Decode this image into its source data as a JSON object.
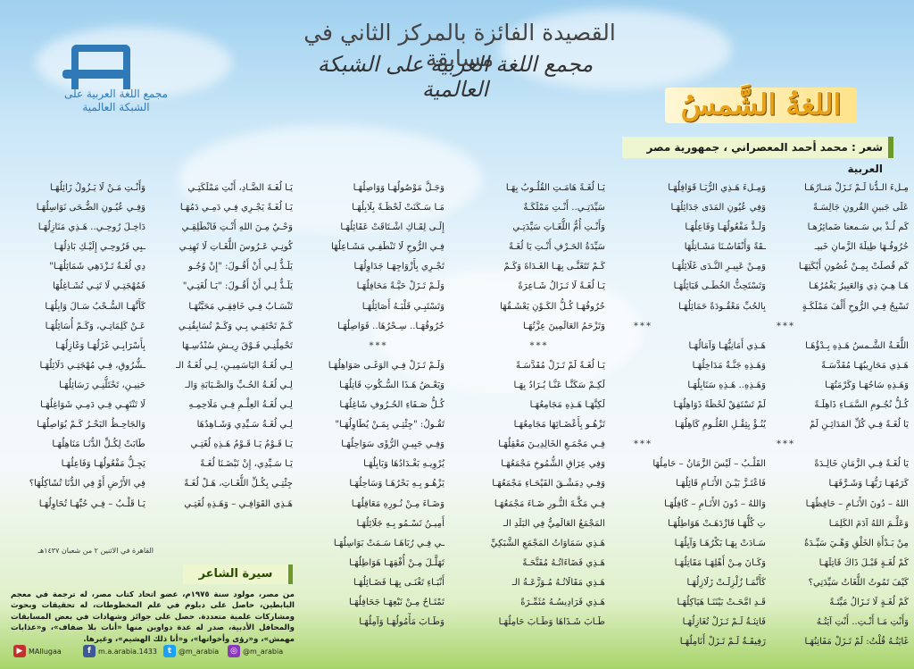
{
  "header": {
    "title": "القصيدة الفائزة بالمركز الثاني في مسابقة",
    "subtitle": "مجمع اللغة العربية على الشبكة العالمية"
  },
  "logo": {
    "text": "مجمع اللغة العربية على الشبكة العالمية"
  },
  "poem": {
    "title": "اللغةُ الشَّمسُ",
    "byline": "شعر : محمد أحمد المعصراني ، جمهورية مصر العربية",
    "separator": "***",
    "columns": [
      [
        "مِـلءَ الـدُّنا لَـمْ تَـزَلْ مَنـارُهَـا",
        "عَلَى جَبينِ القُرونِ جَالِسَـةً",
        "كَم لُـذْ بي سَـمعنا ضَمائِرُهـا",
        "حُرُوفُـهَا طِيلَةَ الزَّمانِ خَبيـ",
        "كَم قُصلَتْ بِمِـنْ غُصُونِ أَيْكَتِهَـا",
        "هَـا هِـيَ ذِي وَالعَبِيرُ يَغْمُرُهَـا",
        "تَسْبِحُ فِـي الرُّوحِ أَلْفَ مَمْلَكَـةٍ",
        "***",
        "اللُّغَـةُ الشَّـمسُ هَـذِهِ بِـدْؤُهَـا",
        "هَـذِي مَحَارِيبُهَـا مُقَدَّسَـةً",
        "وَهَـذِهِ سَاحُهَـا وَكَرْمَتُهَـا",
        "كُـلُّ نُجُـومِ السَّمَـاءِ ذَاهِلَـةً",
        "يَا لُغَـةً فِـي كُلِّ المَدَائِـنِ لَمْ",
        "***",
        "يَا لُغَـةً فِـي الزَّمَانِ خَالِـدَةً",
        "كَرَمُهَـا رَبُّهَـا وَشَـرَّفَهَـا",
        "اللهُ – دُونَ الأَنَـامِ – حَافِظُهَـا",
        "وَعَلَّـمَ اللهُ آدَمَ الكَلِمَـا",
        "مِنْ بَـدْأَةِ الخَلْقِ وَهْـيَ سَيِّـدَةٌ",
        "كَمْ لُغَـةٍ قَبْـلَ ذَاكَ قَاتِلَهَـا",
        "كَيْفَ تَمُوتُ اللُّغَاتُ سَيِّدَتِي؟",
        "كَمْ لُغَـةٍ لَا تَـزَالُ مَيِّتَـةً",
        "وَأَنْتِ مَـا أَنْـتِ.. أَنْتِ آيَتُـهُ",
        "غَايَتُـهُ قُلْتُ: لَمْ تَـزَلْ مَفَاتِنُهَـا"
      ],
      [
        "وَمِـلءَ هَـذِي الرُّبَـا قَوَافِلُهَـا",
        "وَفِي عُيُونِ المَدَى جَدَائِلُهَـا",
        "وَلَـذَّ مَفْعُولُهَـا وَفَاعِلُهَـا",
        "ـقَةً وَأَنْفَاسُـنَا مَشَـاتِلُهَا",
        "وَمِـنْ عَبِيـرِ النَّـدَى غَلَائِلُهَـا",
        "وَتَسْتَحِثُّ الخُطَـى قَبَائِلُهَـا",
        "بِالحُبِّ مَعْقُـودَةً حَمَائِلُهَـا",
        "***",
        "هَـذِي أَمَانِيُّهَـا وَآمَالُهَـا",
        "وَهَـذِهِ جَنَّـةٌ مَدَاخِلُهَـا",
        "وَهَـذِهِ.. هَـذِهِ سَنَابِلُهَـا",
        "لَمْ تَسْتَفِقْ لَحْظَةً ذَوَاهِلُهَـا",
        "يُنُـؤْ بِثِقْـلِ العُلُـومِ كَاهِلُهَـا",
        "***",
        "القَلْـبُ – لَيْسَ الزَّمَانُ – حَامِلُهَا",
        "فَاعْتَـزَّ بَيْـنَ الأَنَـامِ قَائِلُهَـا",
        "وَاللهُ – دُونَ الأَنَـامِ – كَافِلُهَـا",
        "تِ كُلُّهَـا فَازْدَهَـتْ هَوَاطِلُهَـا",
        "سَـادَتْ بِهَـا بَكْرُهَـا وَآيِلُهَـا",
        "وَكَـانَ مِـنْ أَهْلِهَـا مَقَاتِلُهَـا",
        "كَأَنَّمَـا زُلْزِلَـتْ زَلَازِلُهَـا",
        "قَـدِ امَّحَـتْ بَيْنَنَـا هَيَاكِلُهَـا",
        "فَاتِنَـةٌ لَـمْ تَـزَلْ تُغَازِلُهَـا",
        "رَفِيقَـةٌ لَـمْ تَـزَلْ أَنَامِلُهَـا"
      ],
      [
        "يَـا لُغَـةً هَامَـتِ القُلُـوبُ بِهَـا",
        "سَيِّدَتِـي.. أَنْـتِ مَمْلَكَـةٌ",
        "وَأَنْـتِ أُمُّ اللُّغَـاتِ سَيِّدَتِـي",
        "سَيِّدَةُ الحَـرْفِ أَنْـتِ يَا لُغَـةً",
        "كَـمْ تَتَغَنَّـى بِهَـا الغَـدَاةَ وَكَـمْ",
        "يَـا لُغَـةً لَا تَـزَالُ شَـاعِرَةً",
        "حُرُوفُهَـا كُـلُّ الكَـوْنِ يَعْشَـقُهَا",
        "وَتَزْحَمُ العَالَمِينَ عِزَّتُهَـا",
        "***",
        "يَـا لُغَـةً لَمْ تَـزَلْ مُقَدَّسَـةً",
        "لَكِـمْ سَكَنَّـا عَنَّـا يُـرَادُ بِهَـا",
        "لَكِنَّهَـا هَـذِهِ مَجَامِعُهَـا",
        "تَزْهُـو بِأَعْضَـائِهَا مَجَامِعُهَـا",
        "فِـي مَجْمَـعِ الخَالِدِيـنَ مَعْقِلُهَـا",
        "وَفِي عِرَاقِ الشُّمُوخِ مَجْمَعُهَـا",
        "وَفِـي دِمَشْـقَ الفَيْحَـاءِ مَجْمَعُهَـا",
        "فِـي مَكَّـةَ النُّـورِ ضَـاءَ مَجْمَعُهَـا",
        "المَجْمَعُ العَالَمِيُّ فِي البَلَدِ الـ",
        "هَـذِي سَمَاوَاتُ المَجْمَعِ الشَّبَكِيِّ",
        "هَـذِي فَضَاءَاتُـهُ مُفَتَّحَـةً",
        "هَـذِي مَقَالَاتُـهُ مُـوَزَّعَـةُ الـ",
        "هَـذِي فَرَادِيسُـهُ مُثَمِّـرَةً",
        "طَـابَ شَـذَاهَا وَطَـابَ حَامِلُهَـا"
      ],
      [
        "وَجَـلَّ مَوْصُولُهَـا وَوَاصِلُهَـا",
        "مَـا سَـكَنَتْ لَحْظَـةً بِلَابِلُهَـا",
        "إِلَـى لِقَـاكِ اشْـتَاقَتْ عَقَائِلُهَـا",
        "فِـي الرُّوحِ لَا تَنْطَفِـي مَشَـاعِلُهَا",
        "تَجْـرِي بِأَزْوَاجِهَـا جَدَاوِلُهَـا",
        "وَلَـمْ تَـزَلْ حَيَّـةً مَحَافِلُهَـا",
        "وَتَسْتَبِـي قَلْبَـهُ أَصَائِلُهَـا",
        "حُرُوفُهَـا.. سِـحْرُهَا.. فَوَاصِلُهَـا",
        "***",
        "وَلَـمْ تَـزَلْ فِـي الوَغَـى صَوَاهِلُهَـا",
        "وَيَعْـضُ هَـذَا السُّـكُوتِ قَاتِلُهَـا",
        "كُـلُّ صَـفَاءِ الحُـرُوفِ شَاغِلُهَـا",
        "تَقُـولُ: \"جِئْتِـي بِمَـنْ يُطَاوِلُهَـا\"",
        "وَفِـي جَبِيـنِ الرُّؤَى سَوَاحِلُهَـا",
        "يُرْوِيـهِ بَغْـدَادُهَا وَبَابِلُهَـا",
        "يَزْهُـو بِـهِ بَحْرُهَـا وَسَاحِلُهَـا",
        "وَضَـاءَ مِـنْ نُـورِهِ مَعَاقِلُهَـا",
        "أَمِيـنُ تَسْـمُو بِـهِ جَلَائِلُهَـا",
        "ـي فِـي رُبَاهَـا سَـمَتْ بَوَاسِلُهَـا",
        "تَهَلَّـلَ مِـنْ أُفْقِهَـا هَوَاطِلُهَـا",
        "أَنْبَـاءِ تَغْنَـى بِهَـا فَضَـائِلُهَـا",
        "تَمْتَـاحُ مِـنْ نَبْعِهَـا جَحَافِلُهَـا",
        "وَطَـابَ مَأْمُولُهَـا وَآمِلُهَـا"
      ],
      [
        "يَـا لُغَـةَ الضَّـادِ، أَنْتِ مَمْلَكَتِـي",
        "يَـا لُغَـةً يَجْـرِي فِـي دَمِـي دَمُهَـا",
        "وَحْـيٌ مِـنَ اللهِ أَنْـتِ فَانْطَلِقِـي",
        "كُونِـي عَـرُوسَ اللُّغَـاتِ لَا تَهِنِـي",
        "يَلَـذُّ لِـي أَنْ أَقُـولَ: \"إِنْ وُجُـو",
        "يَلَـذُّ لِـي أَنْ أَقُـولَ: \"يَـا لُغَتِـي\"",
        "تَنْسَـابُ فِـي خَافِقِـي مَحَبَّتُهَـا",
        "كَـمْ تَحْتَفِـي بِـي وَكَـمْ تُسَابِقُنِـي",
        "تَحْمِلُنِـي فَـوْقَ رِيـشِ سُنْدُسِـهَا",
        "لِـي لُغَـةُ اليَاسَمِيـنِ، لِـي لُغَـةُ الـ",
        "لِـي لُغَـةُ الحُـبِّ وَالصَّـبَابَةِ وَالـ",
        "لِـي لُغَـةُ العِلْـمِ فِـي مَلَاحِمِـهِ",
        "لِـي لُغَـةُ سَـيِّدِي وَشَـاهِدُهَا",
        "يَـا قَـوْمُ يَـا قَـوْمُ هَـذِهِ لُغَتِـي",
        "يَـا سَـيِّدِي، إِنْ نَبْضَـنَا لُغَـةً",
        "جِئْتِـي بِكُـلِّ اللُّغَـاتِ، هَـلْ لُغَـةً",
        "هَـذِي القَوَافِـي – وَهَـذِهِ لُغَتِـي"
      ],
      [
        "وَأَنْـتِ مَـنْ لَا يَـزُولُ زَائِلُهَـا",
        "وَفِـي عُيُـونِ الضُّـحَى نَوَاسِلُهَـا",
        "دَاخِـلَ رُوحِـي.. هَـذِي مَنَازِلُهَـا",
        "ـبِي فَرُوحِـي إِلَيْـكِ بَاذِلُهَـا",
        "دِي لُغَـةٌ تَـزْدَهِي شَمَائِلُهَـا\"",
        "فَمُهْجَتِـي لَا تَنِـي تُشَـاغِلُهَا",
        "كَأَنَّهَـا السُّـحْبُ سَـالَ وَابِلُهَـا",
        "عَـنْ كَلِمَاتِـي، وَكَـمْ أُسَائِلُهَـا",
        "بِأَسْرَابِـي غَزَلُهَـا وَغَازِلُهَـا",
        "ـشُّرُوقِ، فِـي مُهْجَتِـي دَلَائِلُهَـا",
        "حَنِيـنِ، تَحْتَلُّنِـي رَسَائِلُهَـا",
        "لَا تَنْتَهِـي فِـي دَمِـي شَوَاغِلُهَـا",
        "وَالجَاحِـظُ البَحْـرُ كَـمْ يُوَاصِلُهَـا",
        "طَابَتْ لِكُـلِّ الدُّنَـا مَنَاهِلُهَـا",
        "يَجِـلُّ مَفْعُولُهَـا وَفَاعِلُهَـا",
        "فِي الأَرْضِ أَوْ فِي الدُّنَا تُشَاكِلُهَا؟",
        "يَـا قَلْـبُ – فِـي حُبِّهَـا تُحَاوِلُهَـا"
      ]
    ],
    "date": "القاهرة في الاثنين ٢ من شعبان ١٤٣٧هـ"
  },
  "bio": {
    "title": "سيرة الشاعر",
    "text": "من مصر، مولود سنة ١٩٧٥م، عضو اتحاد كتاب مصر، له ترجمة في معجم البابطين، حاصل على دبلوم في علم المخطوطات، له تحقيقات وبحوث ومشاركات علمية متعددة. حصل على جوائز وشهادات في بعض المسابقات والمحافل الأدبية، صدر له عدة دواوين منها «أنات بلا ضفاف»، و«عذابات مهمش»، و«رؤى وأخواتها»، و«أنا ذلك الهشيم»، وغيرها."
  },
  "social": [
    {
      "icon": "youtube-icon",
      "glyph": "▶",
      "color": "#c4302b",
      "label": "MAllugaa"
    },
    {
      "icon": "facebook-icon",
      "glyph": "f",
      "color": "#3b5998",
      "label": "m.a.arabia.1433"
    },
    {
      "icon": "twitter-icon",
      "glyph": "t",
      "color": "#1da1f2",
      "label": "@m_arabia"
    },
    {
      "icon": "instagram-icon",
      "glyph": "◎",
      "color": "#8a3ab9",
      "label": "@m_arabia"
    }
  ]
}
